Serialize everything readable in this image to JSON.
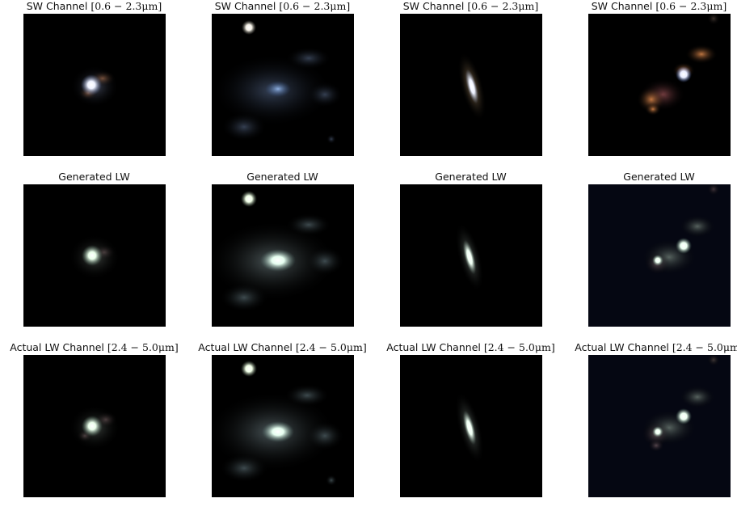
{
  "figure": {
    "rows": [
      {
        "row_name": "sw",
        "title_prefix": "SW Channel ",
        "title_math": "[0.6 − 2.3μm]"
      },
      {
        "row_name": "generated",
        "title_prefix": "Generated LW",
        "title_math": ""
      },
      {
        "row_name": "actual",
        "title_prefix": "Actual LW Channel ",
        "title_math": "[2.4 − 5.0μm]"
      }
    ],
    "columns": [
      {
        "object": "compact-galaxy-with-arm"
      },
      {
        "object": "diffuse-galaxy-with-star"
      },
      {
        "object": "edge-on-elongated-galaxy"
      },
      {
        "object": "merging-clumpy-galaxy"
      }
    ],
    "colors": {
      "background": "#000000",
      "sw_core": "#ffffff",
      "sw_glow_blue": "#5a78b4",
      "sw_glow_orange": "#d98a55",
      "lw_core": "#f2fff2",
      "lw_glow": "#a0b4aa"
    }
  }
}
